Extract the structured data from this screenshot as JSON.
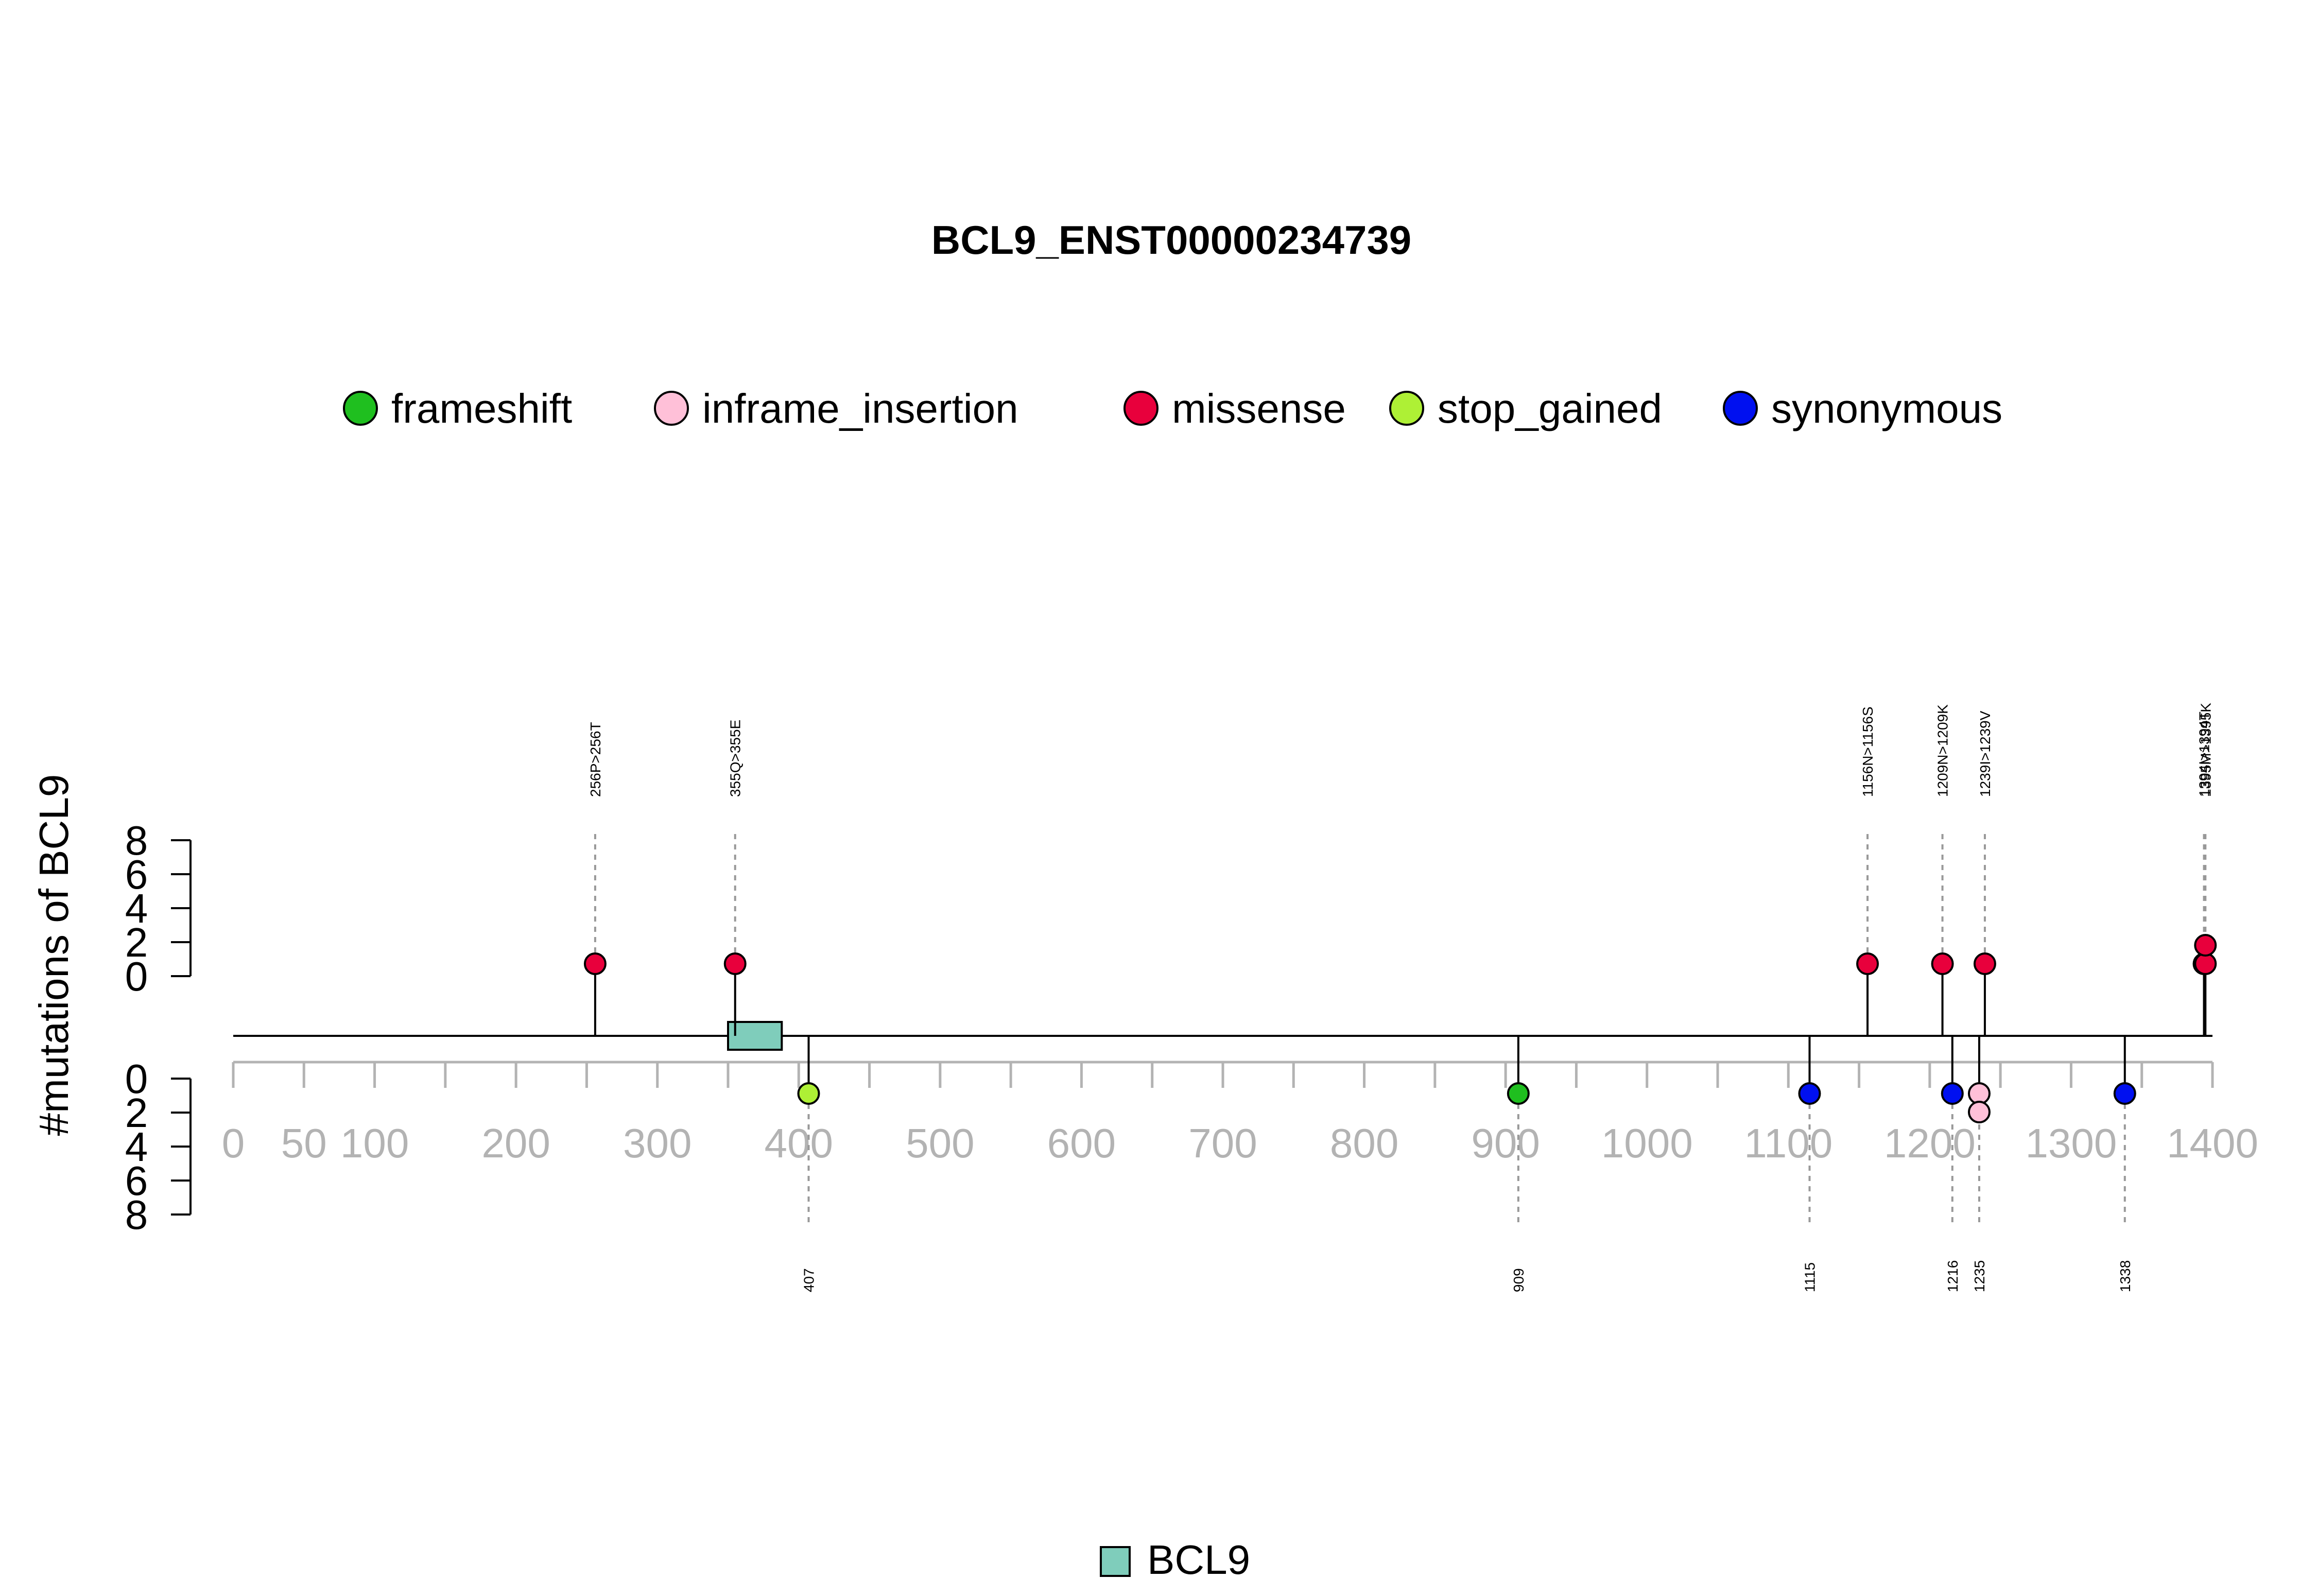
{
  "chart_data": {
    "type": "lollipop",
    "title": "BCL9_ENST00000234739",
    "ylabel": "#mutations of BCL9",
    "x_ticks": [
      0,
      50,
      100,
      200,
      300,
      400,
      500,
      600,
      700,
      800,
      900,
      1000,
      1100,
      1200,
      1300,
      1400
    ],
    "x_minor_ticks": [
      0,
      50,
      100,
      150,
      200,
      250,
      300,
      350,
      400,
      450,
      500,
      550,
      600,
      650,
      700,
      750,
      800,
      850,
      900,
      950,
      1000,
      1050,
      1100,
      1150,
      1200,
      1250,
      1300,
      1350,
      1400
    ],
    "xlim": [
      0,
      1400
    ],
    "y_ticks": [
      0,
      2,
      4,
      6,
      8
    ],
    "ylim": [
      0,
      8
    ],
    "protein_length": 1400,
    "legend": [
      {
        "type": "frameshift",
        "color": "#1fbf1f"
      },
      {
        "type": "inframe_insertion",
        "color": "#ffc0d8"
      },
      {
        "type": "missense",
        "color": "#e8003c"
      },
      {
        "type": "stop_gained",
        "color": "#aef035"
      },
      {
        "type": "synonymous",
        "color": "#0010f0"
      }
    ],
    "domains": [
      {
        "name": "BCL9",
        "start": 350,
        "end": 388,
        "color": "#7fcdbb"
      }
    ],
    "mutations_top": [
      {
        "position": 256,
        "label": "256P>256T",
        "type": "missense",
        "count": 1
      },
      {
        "position": 355,
        "label": "355Q>355E",
        "type": "missense",
        "count": 1
      },
      {
        "position": 1156,
        "label": "1156N>1156S",
        "type": "missense",
        "count": 1
      },
      {
        "position": 1209,
        "label": "1209N>1209K",
        "type": "missense",
        "count": 1
      },
      {
        "position": 1239,
        "label": "1239I>1239V",
        "type": "missense",
        "count": 1
      },
      {
        "position": 1394,
        "label": "1394I>1394T",
        "type": "missense",
        "count": 1
      },
      {
        "position": 1395,
        "label": "1395M>1395K",
        "type": "missense",
        "count": 2
      }
    ],
    "mutations_bottom": [
      {
        "position": 407,
        "label": "407",
        "type": "stop_gained",
        "count": 1
      },
      {
        "position": 909,
        "label": "909",
        "type": "frameshift",
        "count": 1
      },
      {
        "position": 1115,
        "label": "1115",
        "type": "synonymous",
        "count": 1
      },
      {
        "position": 1216,
        "label": "1216",
        "type": "synonymous",
        "count": 1
      },
      {
        "position": 1235,
        "label": "1235",
        "type": "inframe_insertion",
        "count": 2
      },
      {
        "position": 1338,
        "label": "1338",
        "type": "synonymous",
        "count": 1
      }
    ]
  }
}
